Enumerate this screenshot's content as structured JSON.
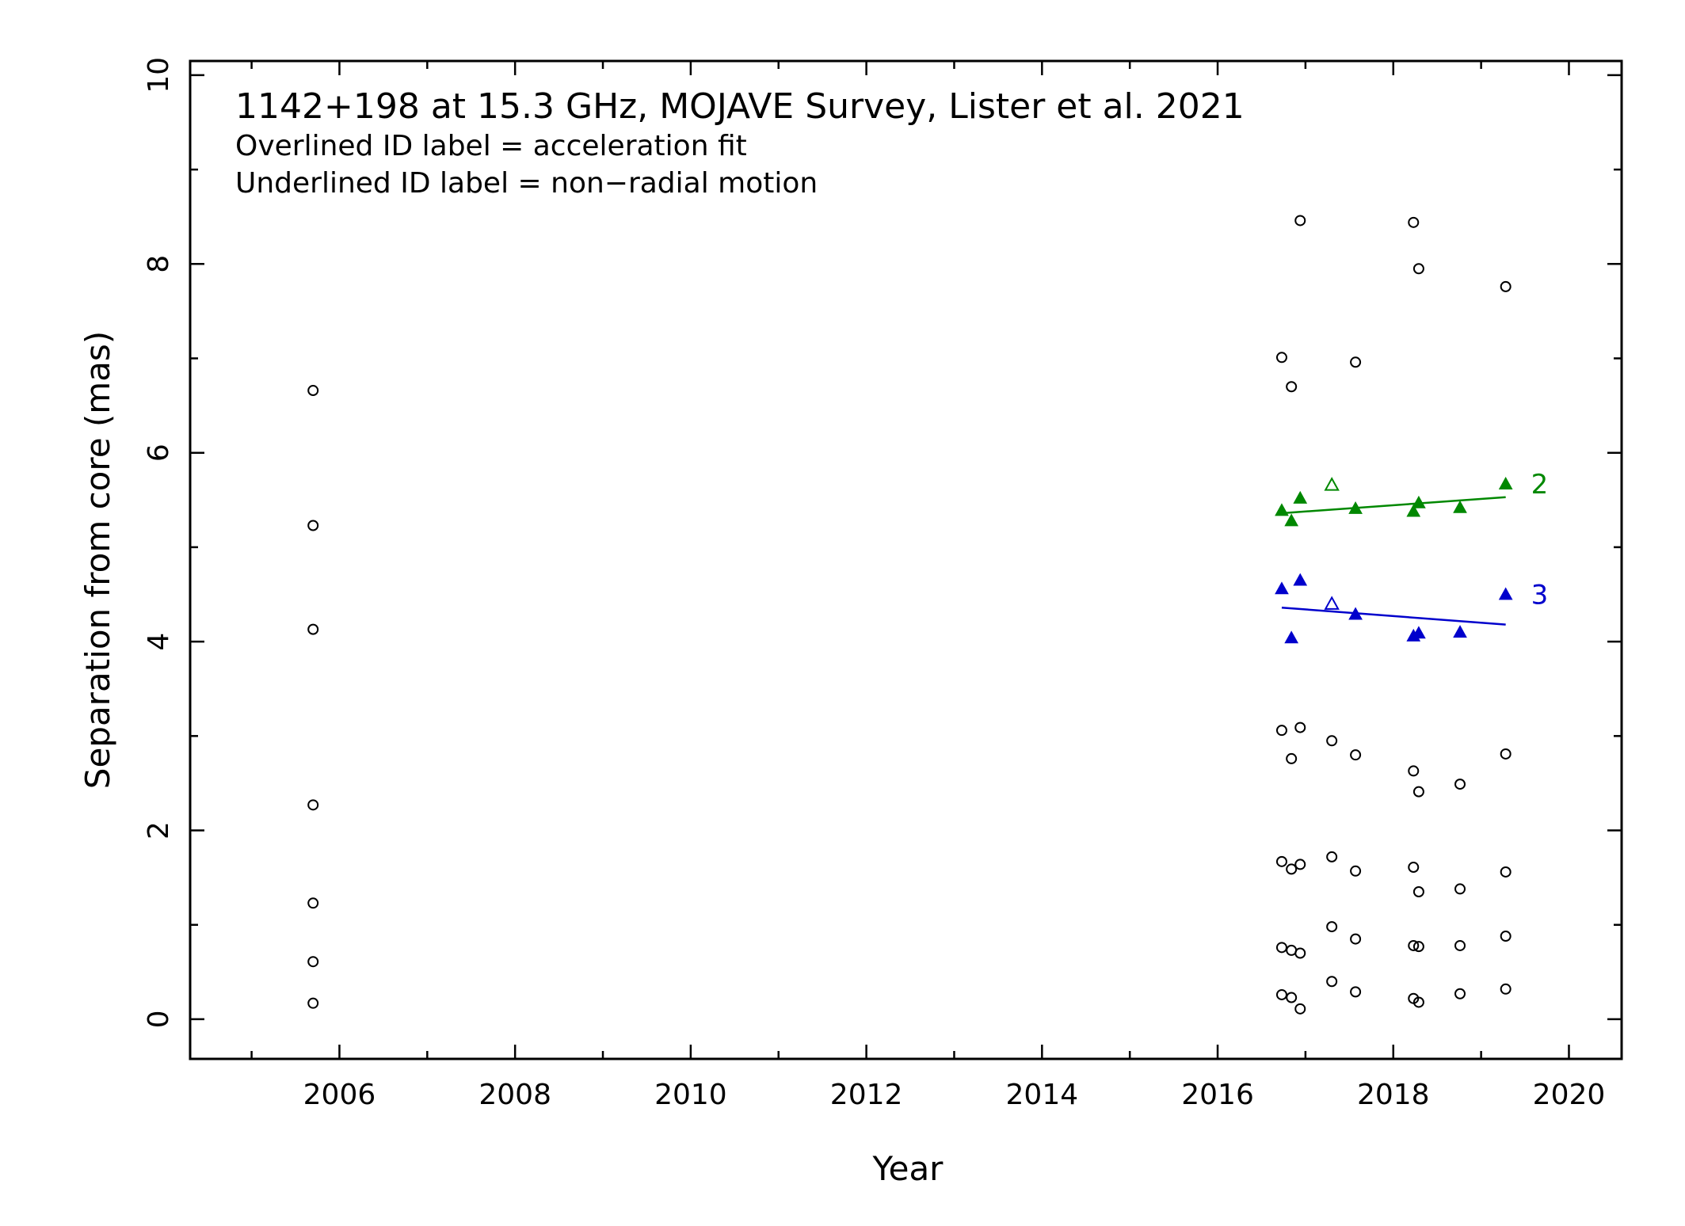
{
  "chart_data": {
    "type": "scatter",
    "title": "1142+198 at 15.3 GHz, MOJAVE Survey, Lister et al. 2021",
    "notes": [
      "Overlined ID label = acceleration fit",
      "Underlined ID label = non−radial motion"
    ],
    "xlabel": "Year",
    "ylabel": "Separation from core (mas)",
    "xlim": [
      2004.3,
      2020.6
    ],
    "ylim": [
      -0.42,
      10.15
    ],
    "xticks": [
      2006,
      2008,
      2010,
      2012,
      2014,
      2016,
      2018,
      2020
    ],
    "xtick_labels": [
      "2006",
      "2008",
      "2010",
      "2012",
      "2014",
      "2016",
      "2018",
      "2020"
    ],
    "yticks": [
      0,
      2,
      4,
      6,
      8,
      10
    ],
    "ytick_labels": [
      "0",
      "2",
      "4",
      "6",
      "8",
      "10"
    ],
    "grid": false,
    "unassigned": {
      "color": "#000000",
      "marker": "open-circle",
      "points": [
        [
          2005.7,
          6.66
        ],
        [
          2005.7,
          5.23
        ],
        [
          2005.7,
          4.13
        ],
        [
          2005.7,
          2.27
        ],
        [
          2005.7,
          1.23
        ],
        [
          2005.7,
          0.61
        ],
        [
          2005.7,
          0.17
        ],
        [
          2016.73,
          7.01
        ],
        [
          2016.73,
          3.06
        ],
        [
          2016.73,
          1.67
        ],
        [
          2016.73,
          0.76
        ],
        [
          2016.73,
          0.26
        ],
        [
          2016.84,
          6.7
        ],
        [
          2016.84,
          2.76
        ],
        [
          2016.84,
          1.59
        ],
        [
          2016.84,
          0.73
        ],
        [
          2016.84,
          0.23
        ],
        [
          2016.94,
          8.46
        ],
        [
          2016.94,
          3.09
        ],
        [
          2016.94,
          1.64
        ],
        [
          2016.94,
          0.7
        ],
        [
          2016.94,
          0.11
        ],
        [
          2017.3,
          2.95
        ],
        [
          2017.3,
          1.72
        ],
        [
          2017.3,
          0.98
        ],
        [
          2017.3,
          0.4
        ],
        [
          2017.57,
          6.96
        ],
        [
          2017.57,
          2.8
        ],
        [
          2017.57,
          1.57
        ],
        [
          2017.57,
          0.85
        ],
        [
          2017.57,
          0.29
        ],
        [
          2018.23,
          8.44
        ],
        [
          2018.23,
          2.63
        ],
        [
          2018.23,
          1.61
        ],
        [
          2018.23,
          0.78
        ],
        [
          2018.23,
          0.22
        ],
        [
          2018.29,
          7.95
        ],
        [
          2018.29,
          2.41
        ],
        [
          2018.29,
          1.35
        ],
        [
          2018.29,
          0.77
        ],
        [
          2018.29,
          0.18
        ],
        [
          2018.76,
          2.49
        ],
        [
          2018.76,
          1.38
        ],
        [
          2018.76,
          0.78
        ],
        [
          2018.76,
          0.27
        ],
        [
          2019.28,
          7.76
        ],
        [
          2019.28,
          2.81
        ],
        [
          2019.28,
          1.56
        ],
        [
          2019.28,
          0.88
        ],
        [
          2019.28,
          0.32
        ]
      ]
    },
    "series": [
      {
        "name": "2",
        "color": "#008800",
        "marker": "filled-triangle",
        "points": [
          [
            2016.73,
            5.39
          ],
          [
            2016.84,
            5.28
          ],
          [
            2016.94,
            5.52
          ],
          [
            2017.57,
            5.41
          ],
          [
            2018.23,
            5.38
          ],
          [
            2018.29,
            5.47
          ],
          [
            2018.76,
            5.42
          ],
          [
            2019.28,
            5.67
          ]
        ],
        "excluded_points": [
          [
            2017.3,
            5.66
          ]
        ],
        "fit": [
          [
            2016.73,
            5.36
          ],
          [
            2019.28,
            5.53
          ]
        ]
      },
      {
        "name": "3",
        "color": "#0000cc",
        "marker": "filled-triangle",
        "points": [
          [
            2016.73,
            4.56
          ],
          [
            2016.84,
            4.04
          ],
          [
            2016.94,
            4.65
          ],
          [
            2017.57,
            4.29
          ],
          [
            2018.23,
            4.06
          ],
          [
            2018.29,
            4.09
          ],
          [
            2018.76,
            4.1
          ],
          [
            2019.28,
            4.5
          ]
        ],
        "excluded_points": [
          [
            2017.3,
            4.4
          ]
        ],
        "fit": [
          [
            2016.73,
            4.36
          ],
          [
            2019.28,
            4.18
          ]
        ]
      }
    ]
  }
}
